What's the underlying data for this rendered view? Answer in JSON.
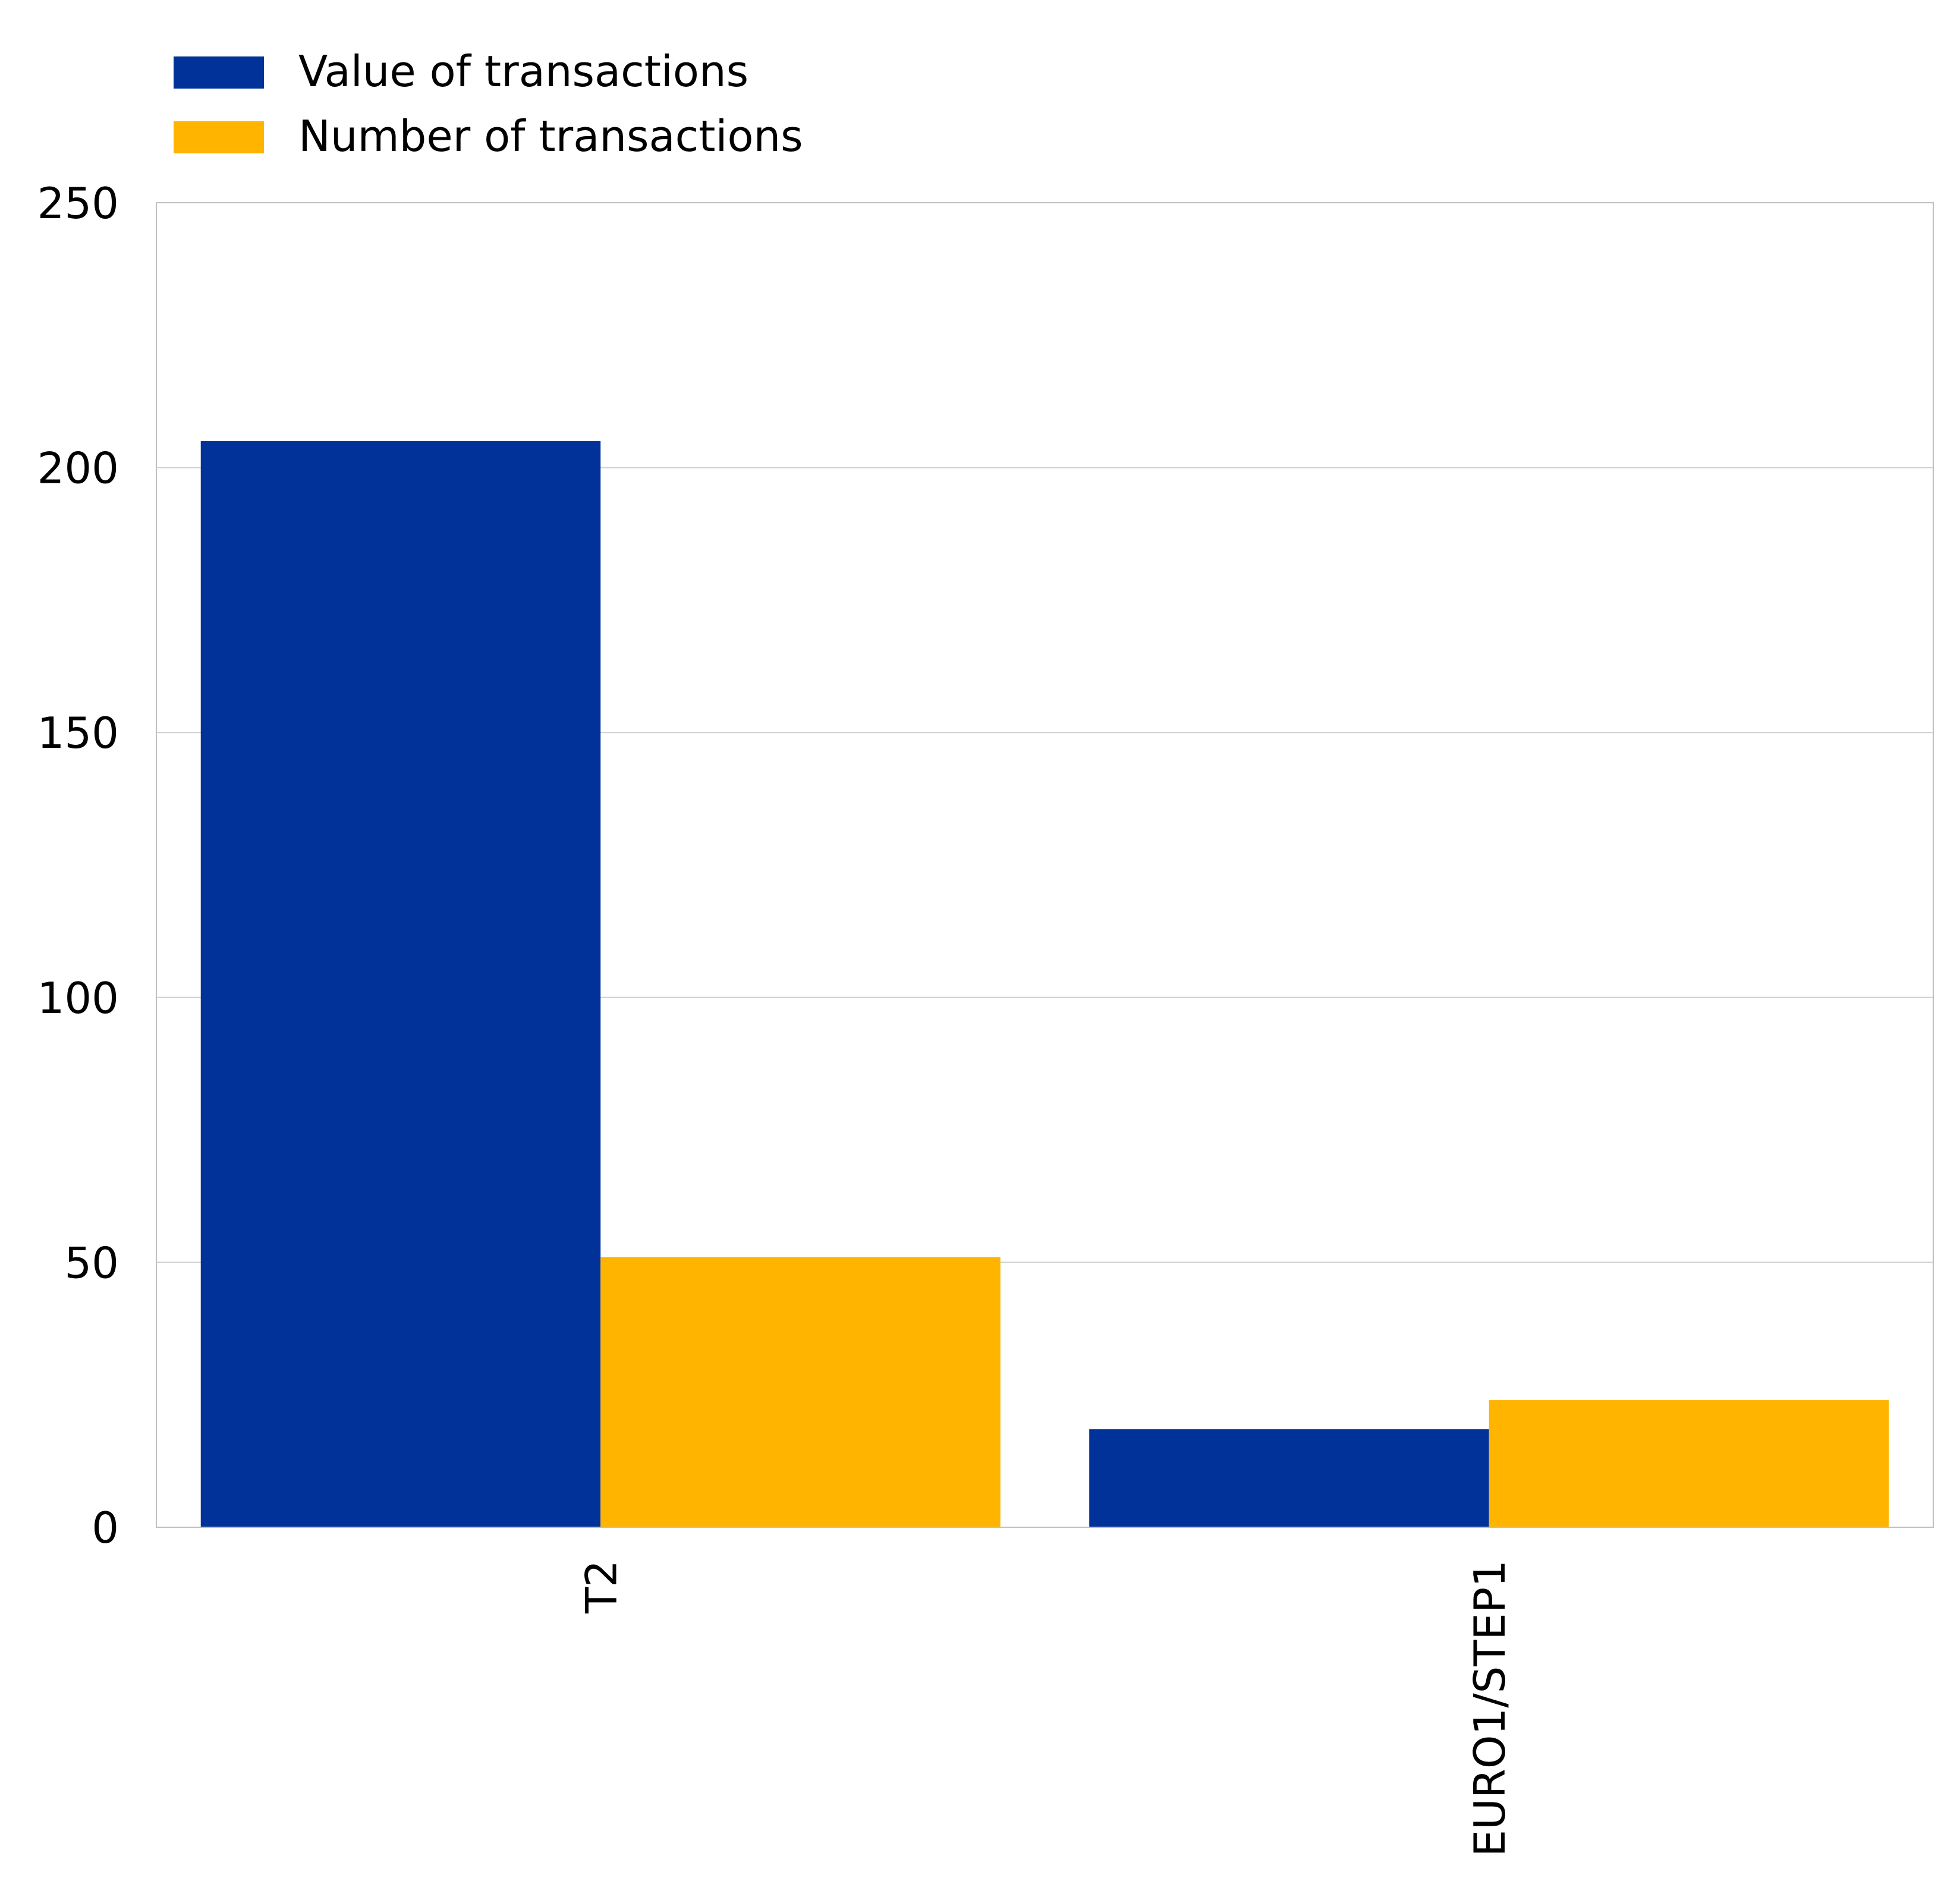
{
  "chart_data": {
    "type": "bar",
    "categories": [
      "T2",
      "EURO1/STEP1"
    ],
    "series": [
      {
        "name": "Value of transactions",
        "values": [
          205,
          18.5
        ],
        "color": "#003299"
      },
      {
        "name": "Number of transactions",
        "values": [
          51,
          24
        ],
        "color": "#FFB400"
      }
    ],
    "ylim": [
      0,
      250
    ],
    "yticks": [
      0,
      50,
      100,
      150,
      200,
      250
    ],
    "title": "",
    "xlabel": "",
    "ylabel": "",
    "grid": "horizontal",
    "legend_position": "top-left"
  },
  "colors": {
    "grid": "#d0d0d0",
    "frame": "#c0c0c0"
  }
}
